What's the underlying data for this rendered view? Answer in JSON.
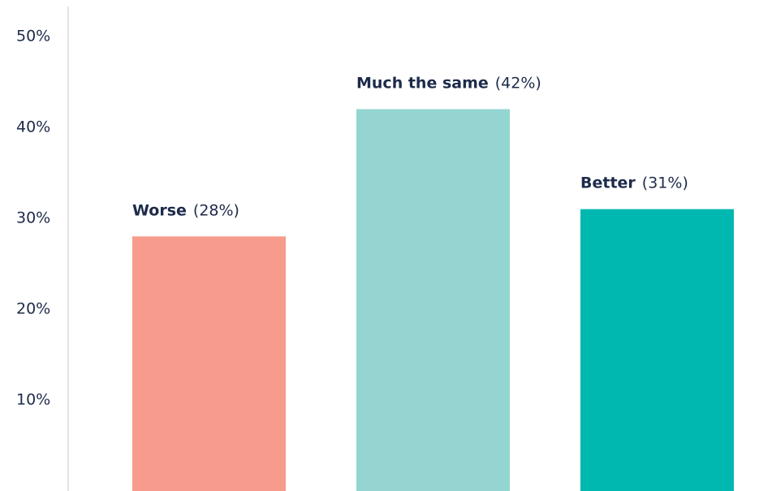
{
  "chart_data": {
    "type": "bar",
    "categories": [
      "Worse",
      "Much the same",
      "Better"
    ],
    "values": [
      28,
      42,
      31
    ],
    "value_labels": [
      "(28%)",
      "(42%)",
      "(31%)"
    ],
    "colors": [
      "#f79b8d",
      "#94d5d2",
      "#00b8b0"
    ],
    "ylim": [
      0,
      54
    ],
    "yticks": [
      {
        "value": 10,
        "label": "10%"
      },
      {
        "value": 20,
        "label": "20%"
      },
      {
        "value": 30,
        "label": "30%"
      },
      {
        "value": 40,
        "label": "40%"
      },
      {
        "value": 50,
        "label": "50%"
      }
    ]
  }
}
